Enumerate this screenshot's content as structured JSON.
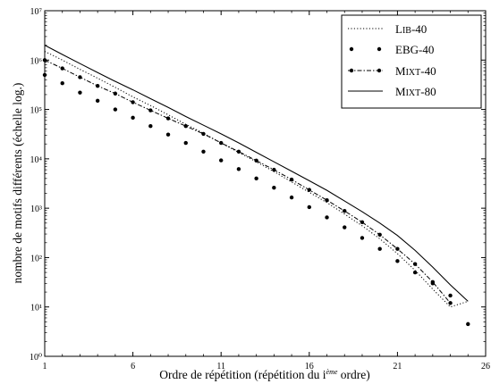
{
  "chart_data": {
    "type": "line",
    "title": "",
    "xlabel": "Ordre de répétition (répétition du i",
    "xlabel_sup": "ème",
    "xlabel_tail": " ordre)",
    "ylabel": "nombre de motifs différents (échelle log.)",
    "xlim": [
      1,
      26
    ],
    "ylim": [
      1,
      10000000
    ],
    "yscale": "log",
    "grid": false,
    "legend_position": "top-right",
    "x_ticks": [
      1,
      6,
      11,
      16,
      21,
      26
    ],
    "x_tick_labels": [
      "1",
      "6",
      "11",
      "16",
      "21",
      "26"
    ],
    "y_ticks": [
      1,
      10,
      100,
      1000,
      10000,
      100000,
      1000000,
      10000000
    ],
    "y_tick_labels": [
      "10⁰",
      "10¹",
      "10²",
      "10³",
      "10⁴",
      "10⁵",
      "10⁶",
      "10⁷"
    ],
    "series": [
      {
        "name": "LIB-40",
        "style": "dotted",
        "x": [
          1,
          2,
          3,
          4,
          5,
          6,
          7,
          8,
          9,
          10,
          11,
          12,
          13,
          14,
          15,
          16,
          17,
          18,
          19,
          20,
          21,
          22,
          23,
          24,
          25
        ],
        "y": [
          1500000,
          1000000,
          650000,
          430000,
          280000,
          180000,
          120000,
          78000,
          50000,
          33000,
          21000,
          13500,
          8700,
          5500,
          3400,
          2100,
          1300,
          760,
          440,
          240,
          120,
          55,
          23,
          10,
          13
        ]
      },
      {
        "name": "EBG-40",
        "style": "markers",
        "x": [
          1,
          2,
          3,
          4,
          5,
          6,
          7,
          8,
          9,
          10,
          11,
          12,
          13,
          14,
          15,
          16,
          17,
          18,
          19,
          20,
          21,
          22,
          23,
          24,
          25
        ],
        "y": [
          500000,
          340000,
          220000,
          150000,
          100000,
          68000,
          46000,
          31000,
          21000,
          14000,
          9300,
          6200,
          4000,
          2600,
          1650,
          1050,
          650,
          410,
          250,
          150,
          85,
          50,
          30,
          17,
          4.5
        ]
      },
      {
        "name": "MIXT-40",
        "style": "dash-dot-markers",
        "x": [
          1,
          2,
          3,
          4,
          5,
          6,
          7,
          8,
          9,
          10,
          11,
          12,
          13,
          14,
          15,
          16,
          17,
          18,
          19,
          20,
          21,
          22,
          23,
          24
        ],
        "y": [
          1000000,
          680000,
          450000,
          300000,
          210000,
          140000,
          96000,
          66000,
          46000,
          32000,
          21000,
          14000,
          9200,
          6000,
          3800,
          2350,
          1450,
          880,
          520,
          290,
          150,
          74,
          32,
          12
        ]
      },
      {
        "name": "MIXT-80",
        "style": "solid",
        "x": [
          1,
          2,
          3,
          4,
          5,
          6,
          7,
          8,
          9,
          10,
          11,
          12,
          13,
          14,
          15,
          16,
          17,
          18,
          19,
          20,
          21,
          22,
          23,
          24,
          25
        ],
        "y": [
          2000000,
          1300000,
          850000,
          560000,
          370000,
          250000,
          165000,
          110000,
          72000,
          48000,
          32000,
          21000,
          13500,
          8700,
          5600,
          3600,
          2300,
          1400,
          850,
          500,
          280,
          140,
          64,
          28,
          13
        ]
      }
    ],
    "legend": [
      {
        "cap": "L",
        "small": "IB",
        "rest": "-40"
      },
      {
        "cap": "EBG-40",
        "small": "",
        "rest": ""
      },
      {
        "cap": "M",
        "small": "IXT",
        "rest": "-40"
      },
      {
        "cap": "M",
        "small": "IXT",
        "rest": "-80"
      }
    ]
  }
}
